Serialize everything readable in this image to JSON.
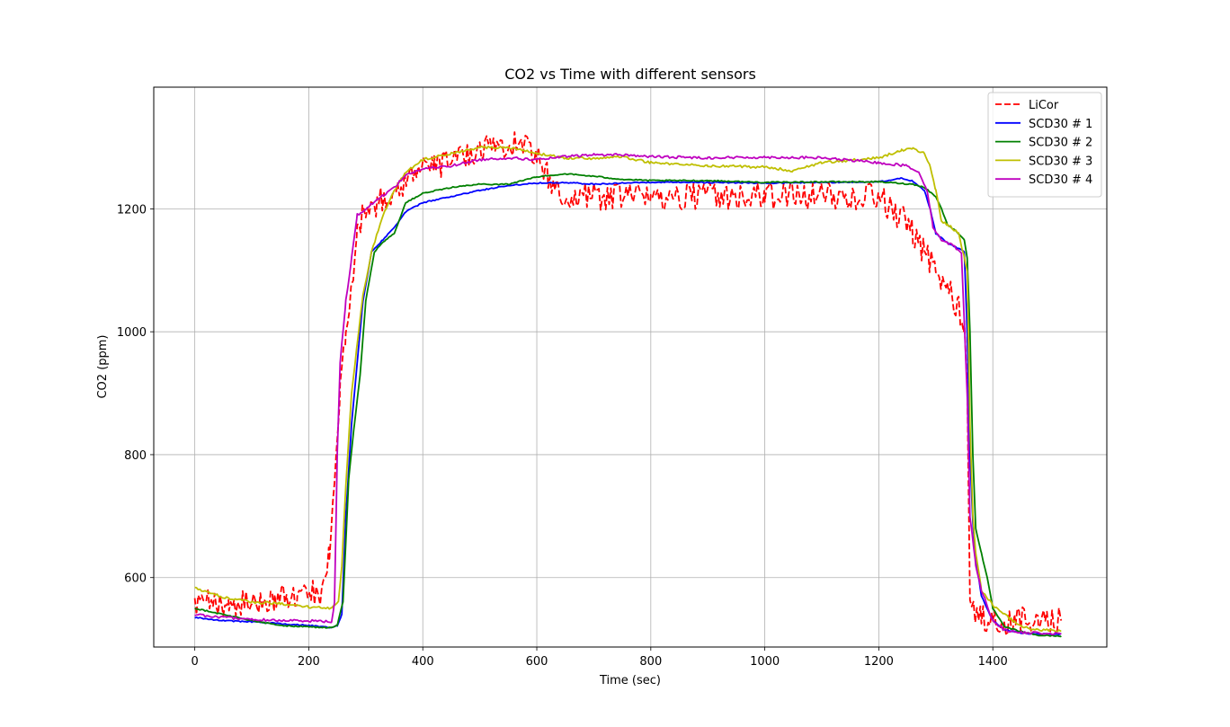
{
  "chart_data": {
    "type": "line",
    "title": "CO2 vs Time with different sensors",
    "xlabel": "Time (sec)",
    "ylabel": "CO2 (ppm)",
    "xlim": [
      -72,
      1600
    ],
    "ylim": [
      487,
      1398
    ],
    "xticks": [
      0,
      200,
      400,
      600,
      800,
      1000,
      1200,
      1400
    ],
    "yticks": [
      600,
      800,
      1000,
      1200
    ],
    "grid": true,
    "legend_position": "top-right",
    "series": [
      {
        "name": "LiCor",
        "color": "#ff0000",
        "style": "dashed",
        "noise": 22,
        "points": [
          [
            0,
            550
          ],
          [
            20,
            558
          ],
          [
            60,
            558
          ],
          [
            100,
            557
          ],
          [
            140,
            565
          ],
          [
            180,
            572
          ],
          [
            220,
            578
          ],
          [
            232,
            590
          ],
          [
            236,
            640
          ],
          [
            245,
            760
          ],
          [
            255,
            900
          ],
          [
            265,
            1000
          ],
          [
            275,
            1080
          ],
          [
            285,
            1160
          ],
          [
            300,
            1200
          ],
          [
            320,
            1210
          ],
          [
            350,
            1225
          ],
          [
            380,
            1260
          ],
          [
            420,
            1270
          ],
          [
            460,
            1280
          ],
          [
            500,
            1300
          ],
          [
            540,
            1305
          ],
          [
            580,
            1305
          ],
          [
            600,
            1290
          ],
          [
            620,
            1250
          ],
          [
            640,
            1220
          ],
          [
            700,
            1220
          ],
          [
            800,
            1220
          ],
          [
            900,
            1222
          ],
          [
            1000,
            1220
          ],
          [
            1100,
            1222
          ],
          [
            1200,
            1220
          ],
          [
            1220,
            1200
          ],
          [
            1240,
            1185
          ],
          [
            1260,
            1160
          ],
          [
            1280,
            1130
          ],
          [
            1300,
            1100
          ],
          [
            1320,
            1070
          ],
          [
            1340,
            1040
          ],
          [
            1350,
            1010
          ],
          [
            1355,
            900
          ],
          [
            1358,
            700
          ],
          [
            1360,
            550
          ],
          [
            1380,
            540
          ],
          [
            1400,
            525
          ],
          [
            1420,
            525
          ],
          [
            1440,
            530
          ],
          [
            1480,
            535
          ],
          [
            1520,
            530
          ]
        ]
      },
      {
        "name": "SCD30 # 1",
        "color": "#0000ff",
        "style": "solid",
        "noise": 1,
        "points": [
          [
            0,
            535
          ],
          [
            50,
            530
          ],
          [
            100,
            528
          ],
          [
            150,
            525
          ],
          [
            200,
            522
          ],
          [
            240,
            519
          ],
          [
            250,
            522
          ],
          [
            258,
            540
          ],
          [
            265,
            700
          ],
          [
            275,
            850
          ],
          [
            285,
            950
          ],
          [
            295,
            1050
          ],
          [
            310,
            1130
          ],
          [
            330,
            1150
          ],
          [
            350,
            1170
          ],
          [
            370,
            1195
          ],
          [
            400,
            1210
          ],
          [
            450,
            1220
          ],
          [
            500,
            1230
          ],
          [
            550,
            1238
          ],
          [
            600,
            1242
          ],
          [
            650,
            1243
          ],
          [
            700,
            1240
          ],
          [
            750,
            1242
          ],
          [
            800,
            1243
          ],
          [
            900,
            1243
          ],
          [
            1000,
            1242
          ],
          [
            1100,
            1243
          ],
          [
            1200,
            1244
          ],
          [
            1240,
            1250
          ],
          [
            1260,
            1245
          ],
          [
            1280,
            1230
          ],
          [
            1290,
            1200
          ],
          [
            1300,
            1160
          ],
          [
            1320,
            1145
          ],
          [
            1340,
            1135
          ],
          [
            1350,
            1130
          ],
          [
            1355,
            1000
          ],
          [
            1360,
            800
          ],
          [
            1365,
            690
          ],
          [
            1370,
            630
          ],
          [
            1380,
            570
          ],
          [
            1400,
            530
          ],
          [
            1420,
            515
          ],
          [
            1450,
            510
          ],
          [
            1480,
            508
          ],
          [
            1520,
            508
          ]
        ]
      },
      {
        "name": "SCD30 # 2",
        "color": "#008000",
        "style": "solid",
        "noise": 1,
        "points": [
          [
            0,
            550
          ],
          [
            50,
            540
          ],
          [
            100,
            530
          ],
          [
            150,
            522
          ],
          [
            200,
            520
          ],
          [
            240,
            518
          ],
          [
            250,
            522
          ],
          [
            260,
            560
          ],
          [
            270,
            760
          ],
          [
            280,
            850
          ],
          [
            290,
            930
          ],
          [
            300,
            1050
          ],
          [
            315,
            1130
          ],
          [
            335,
            1150
          ],
          [
            350,
            1160
          ],
          [
            370,
            1210
          ],
          [
            400,
            1225
          ],
          [
            450,
            1235
          ],
          [
            500,
            1240
          ],
          [
            550,
            1240
          ],
          [
            600,
            1252
          ],
          [
            650,
            1257
          ],
          [
            700,
            1253
          ],
          [
            750,
            1248
          ],
          [
            800,
            1246
          ],
          [
            900,
            1246
          ],
          [
            1000,
            1243
          ],
          [
            1100,
            1244
          ],
          [
            1200,
            1244
          ],
          [
            1260,
            1240
          ],
          [
            1280,
            1235
          ],
          [
            1300,
            1220
          ],
          [
            1310,
            1200
          ],
          [
            1320,
            1175
          ],
          [
            1340,
            1160
          ],
          [
            1350,
            1150
          ],
          [
            1355,
            1120
          ],
          [
            1360,
            1000
          ],
          [
            1365,
            800
          ],
          [
            1370,
            680
          ],
          [
            1380,
            640
          ],
          [
            1390,
            600
          ],
          [
            1400,
            550
          ],
          [
            1420,
            520
          ],
          [
            1450,
            512
          ],
          [
            1480,
            506
          ],
          [
            1520,
            505
          ]
        ]
      },
      {
        "name": "SCD30 # 3",
        "color": "#bfbf00",
        "style": "solid",
        "noise": 2,
        "points": [
          [
            0,
            583
          ],
          [
            50,
            568
          ],
          [
            100,
            560
          ],
          [
            150,
            558
          ],
          [
            200,
            552
          ],
          [
            240,
            550
          ],
          [
            252,
            560
          ],
          [
            258,
            620
          ],
          [
            265,
            750
          ],
          [
            275,
            900
          ],
          [
            285,
            980
          ],
          [
            295,
            1060
          ],
          [
            310,
            1130
          ],
          [
            330,
            1190
          ],
          [
            350,
            1230
          ],
          [
            370,
            1260
          ],
          [
            400,
            1280
          ],
          [
            450,
            1290
          ],
          [
            500,
            1300
          ],
          [
            550,
            1300
          ],
          [
            600,
            1290
          ],
          [
            650,
            1283
          ],
          [
            700,
            1282
          ],
          [
            750,
            1285
          ],
          [
            800,
            1275
          ],
          [
            900,
            1270
          ],
          [
            1000,
            1268
          ],
          [
            1050,
            1262
          ],
          [
            1100,
            1275
          ],
          [
            1200,
            1283
          ],
          [
            1240,
            1295
          ],
          [
            1260,
            1298
          ],
          [
            1280,
            1290
          ],
          [
            1290,
            1270
          ],
          [
            1300,
            1230
          ],
          [
            1310,
            1180
          ],
          [
            1320,
            1175
          ],
          [
            1340,
            1160
          ],
          [
            1355,
            1100
          ],
          [
            1360,
            850
          ],
          [
            1365,
            700
          ],
          [
            1370,
            640
          ],
          [
            1380,
            580
          ],
          [
            1400,
            555
          ],
          [
            1420,
            540
          ],
          [
            1450,
            520
          ],
          [
            1480,
            515
          ],
          [
            1520,
            513
          ]
        ]
      },
      {
        "name": "SCD30 # 4",
        "color": "#bf00bf",
        "style": "solid",
        "noise": 2,
        "points": [
          [
            0,
            540
          ],
          [
            50,
            535
          ],
          [
            100,
            532
          ],
          [
            150,
            530
          ],
          [
            200,
            530
          ],
          [
            240,
            528
          ],
          [
            245,
            560
          ],
          [
            250,
            800
          ],
          [
            255,
            950
          ],
          [
            265,
            1050
          ],
          [
            275,
            1120
          ],
          [
            285,
            1190
          ],
          [
            300,
            1200
          ],
          [
            320,
            1215
          ],
          [
            350,
            1235
          ],
          [
            370,
            1255
          ],
          [
            400,
            1265
          ],
          [
            450,
            1270
          ],
          [
            500,
            1280
          ],
          [
            550,
            1283
          ],
          [
            600,
            1280
          ],
          [
            650,
            1285
          ],
          [
            700,
            1288
          ],
          [
            750,
            1288
          ],
          [
            800,
            1285
          ],
          [
            900,
            1283
          ],
          [
            1000,
            1284
          ],
          [
            1100,
            1283
          ],
          [
            1200,
            1275
          ],
          [
            1250,
            1270
          ],
          [
            1270,
            1260
          ],
          [
            1285,
            1230
          ],
          [
            1295,
            1170
          ],
          [
            1310,
            1150
          ],
          [
            1330,
            1140
          ],
          [
            1345,
            1130
          ],
          [
            1355,
            900
          ],
          [
            1360,
            700
          ],
          [
            1370,
            620
          ],
          [
            1380,
            580
          ],
          [
            1400,
            530
          ],
          [
            1420,
            515
          ],
          [
            1450,
            510
          ],
          [
            1480,
            510
          ],
          [
            1520,
            508
          ]
        ]
      }
    ]
  }
}
